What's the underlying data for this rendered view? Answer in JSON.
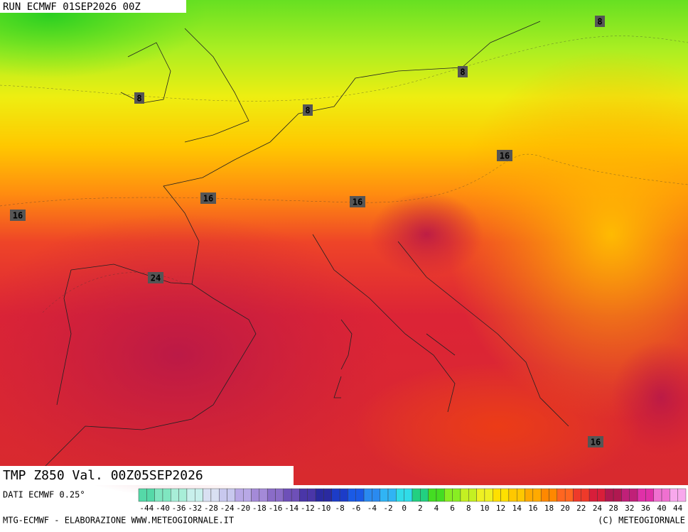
{
  "header": {
    "run": "RUN ECMWF 01SEP2026 00Z"
  },
  "map": {
    "field_label": "TMP Z850 Val. 00Z05SEP2026",
    "contour_labels": [
      8,
      8,
      8,
      8,
      16,
      16,
      16,
      16,
      16,
      24
    ]
  },
  "legend": {
    "source": "DATI ECMWF 0.25°",
    "scale_labels": [
      -44,
      -40,
      -36,
      -32,
      -28,
      -24,
      -20,
      -18,
      -16,
      -14,
      -12,
      -10,
      -8,
      -6,
      -4,
      -2,
      0,
      2,
      4,
      6,
      8,
      10,
      12,
      14,
      16,
      18,
      20,
      22,
      24,
      28,
      32,
      36,
      40,
      44
    ],
    "scale_colors": [
      "#55d9a8",
      "#7fe6c0",
      "#a8eed8",
      "#c8f0ec",
      "#d9e0f2",
      "#c8c8ee",
      "#b8a8e6",
      "#a48ad8",
      "#8a6cc8",
      "#6e50b8",
      "#4a36a8",
      "#2a2aa0",
      "#1c3cc8",
      "#1a5ae6",
      "#2a8af0",
      "#30b4f4",
      "#30dce8",
      "#22d080",
      "#44dd22",
      "#88ee22",
      "#c4f022",
      "#eef022",
      "#ffe000",
      "#ffc800",
      "#ffaa00",
      "#ff8800",
      "#ff6620",
      "#ee3a2a",
      "#d81e3a",
      "#b01850",
      "#c02078",
      "#e030a8",
      "#f070d0",
      "#f8a8ec"
    ]
  },
  "footer": {
    "left": "MTG-ECMWF - ELABORAZIONE WWW.METEOGIORNALE.IT",
    "right": "(C) METEOGIORNALE"
  }
}
